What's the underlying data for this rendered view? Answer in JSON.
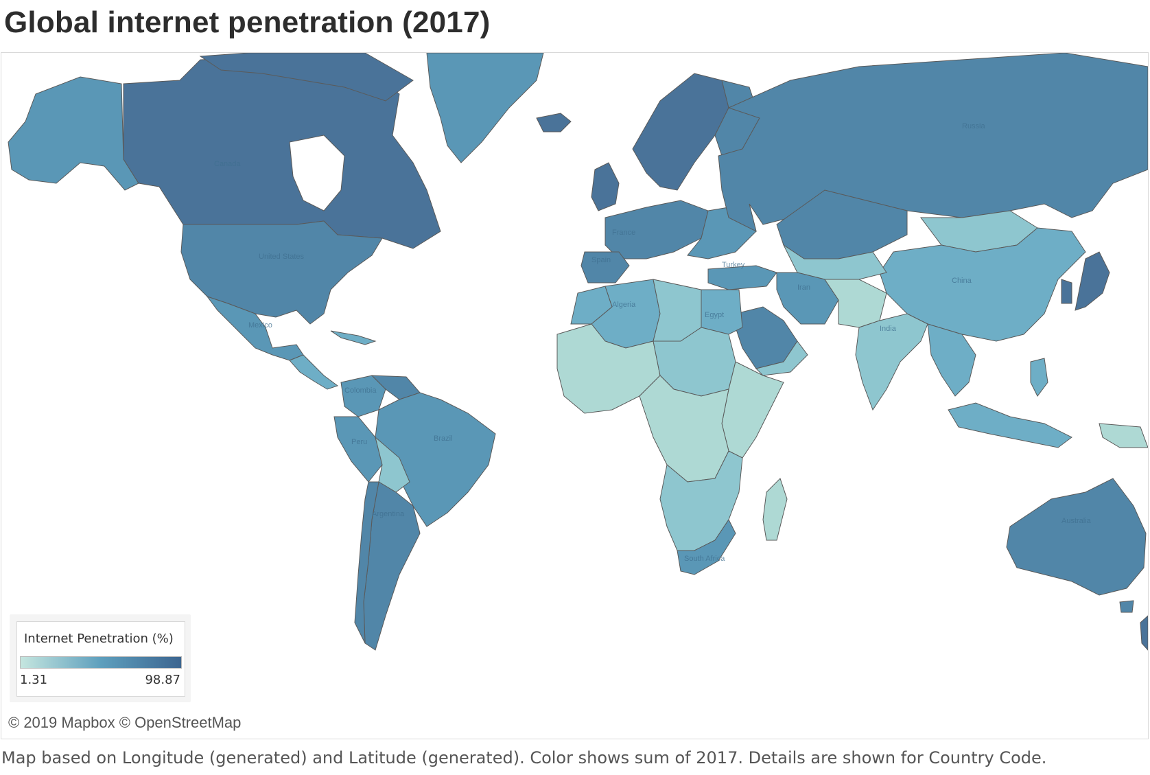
{
  "title": "Global internet penetration (2017)",
  "legend": {
    "title": "Internet Penetration (%)",
    "min_label": "1.31",
    "max_label": "98.87",
    "min_value": 1.31,
    "max_value": 98.87,
    "color_low": "#c5e6df",
    "color_mid": "#5e9fbd",
    "color_high": "#3c6590"
  },
  "attribution": "© 2019 Mapbox © OpenStreetMap",
  "caption": "Map based on Longitude (generated) and Latitude (generated).  Color shows sum of 2017.  Details are shown for Country Code.",
  "colors": {
    "very_high": "#4a7399",
    "high": "#5186a8",
    "medium_high": "#5a97b6",
    "medium": "#6eaec6",
    "medium_low": "#8ec6cf",
    "low": "#aed9d4",
    "border": "#5a5a5a"
  },
  "country_labels": [
    "Canada",
    "United States",
    "Mexico",
    "Colombia",
    "Peru",
    "Brazil",
    "Argentina",
    "Russia",
    "France",
    "Spain",
    "Turkey",
    "Algeria",
    "Egypt",
    "Iran",
    "India",
    "China",
    "South Africa",
    "Australia"
  ]
}
